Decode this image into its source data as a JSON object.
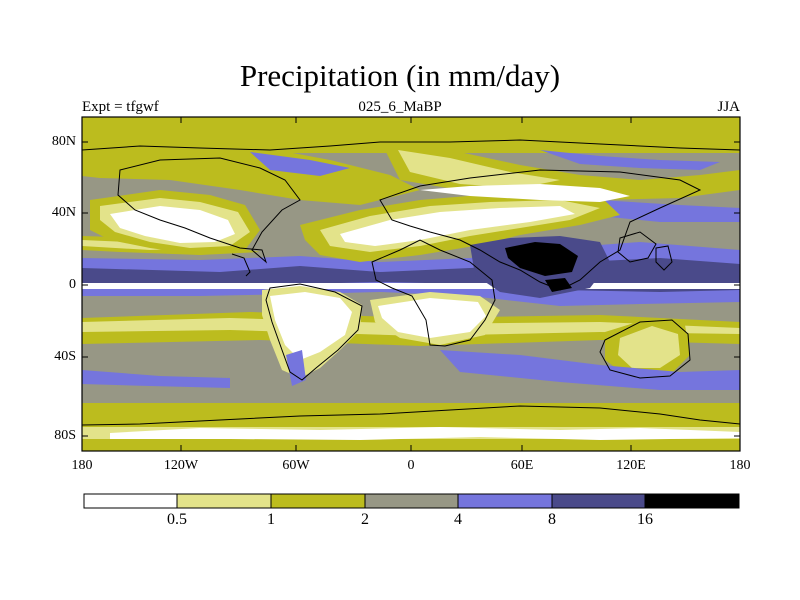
{
  "title": "Precipitation (in mm/day)",
  "left_label": "Expt = tfgwf",
  "center_label": "025_6_MaBP",
  "right_label": "JJA",
  "lat_ticks": [
    "80N",
    "40N",
    "0",
    "40S",
    "80S"
  ],
  "lon_ticks": [
    "180",
    "120W",
    "60W",
    "0",
    "60E",
    "120E",
    "180"
  ],
  "colorbar": {
    "labels": [
      "0.5",
      "1",
      "2",
      "4",
      "8",
      "16"
    ],
    "colors": [
      "#ffffff",
      "#e3e38a",
      "#bcbc1e",
      "#979785",
      "#7575dd",
      "#4a4a8a",
      "#000000"
    ]
  },
  "colors": {
    "dry": "#ffffff",
    "light": "#e3e38a",
    "olive": "#bcbc1e",
    "gray": "#979785",
    "blue": "#7575dd",
    "navy": "#4a4a8a",
    "black": "#000000"
  }
}
